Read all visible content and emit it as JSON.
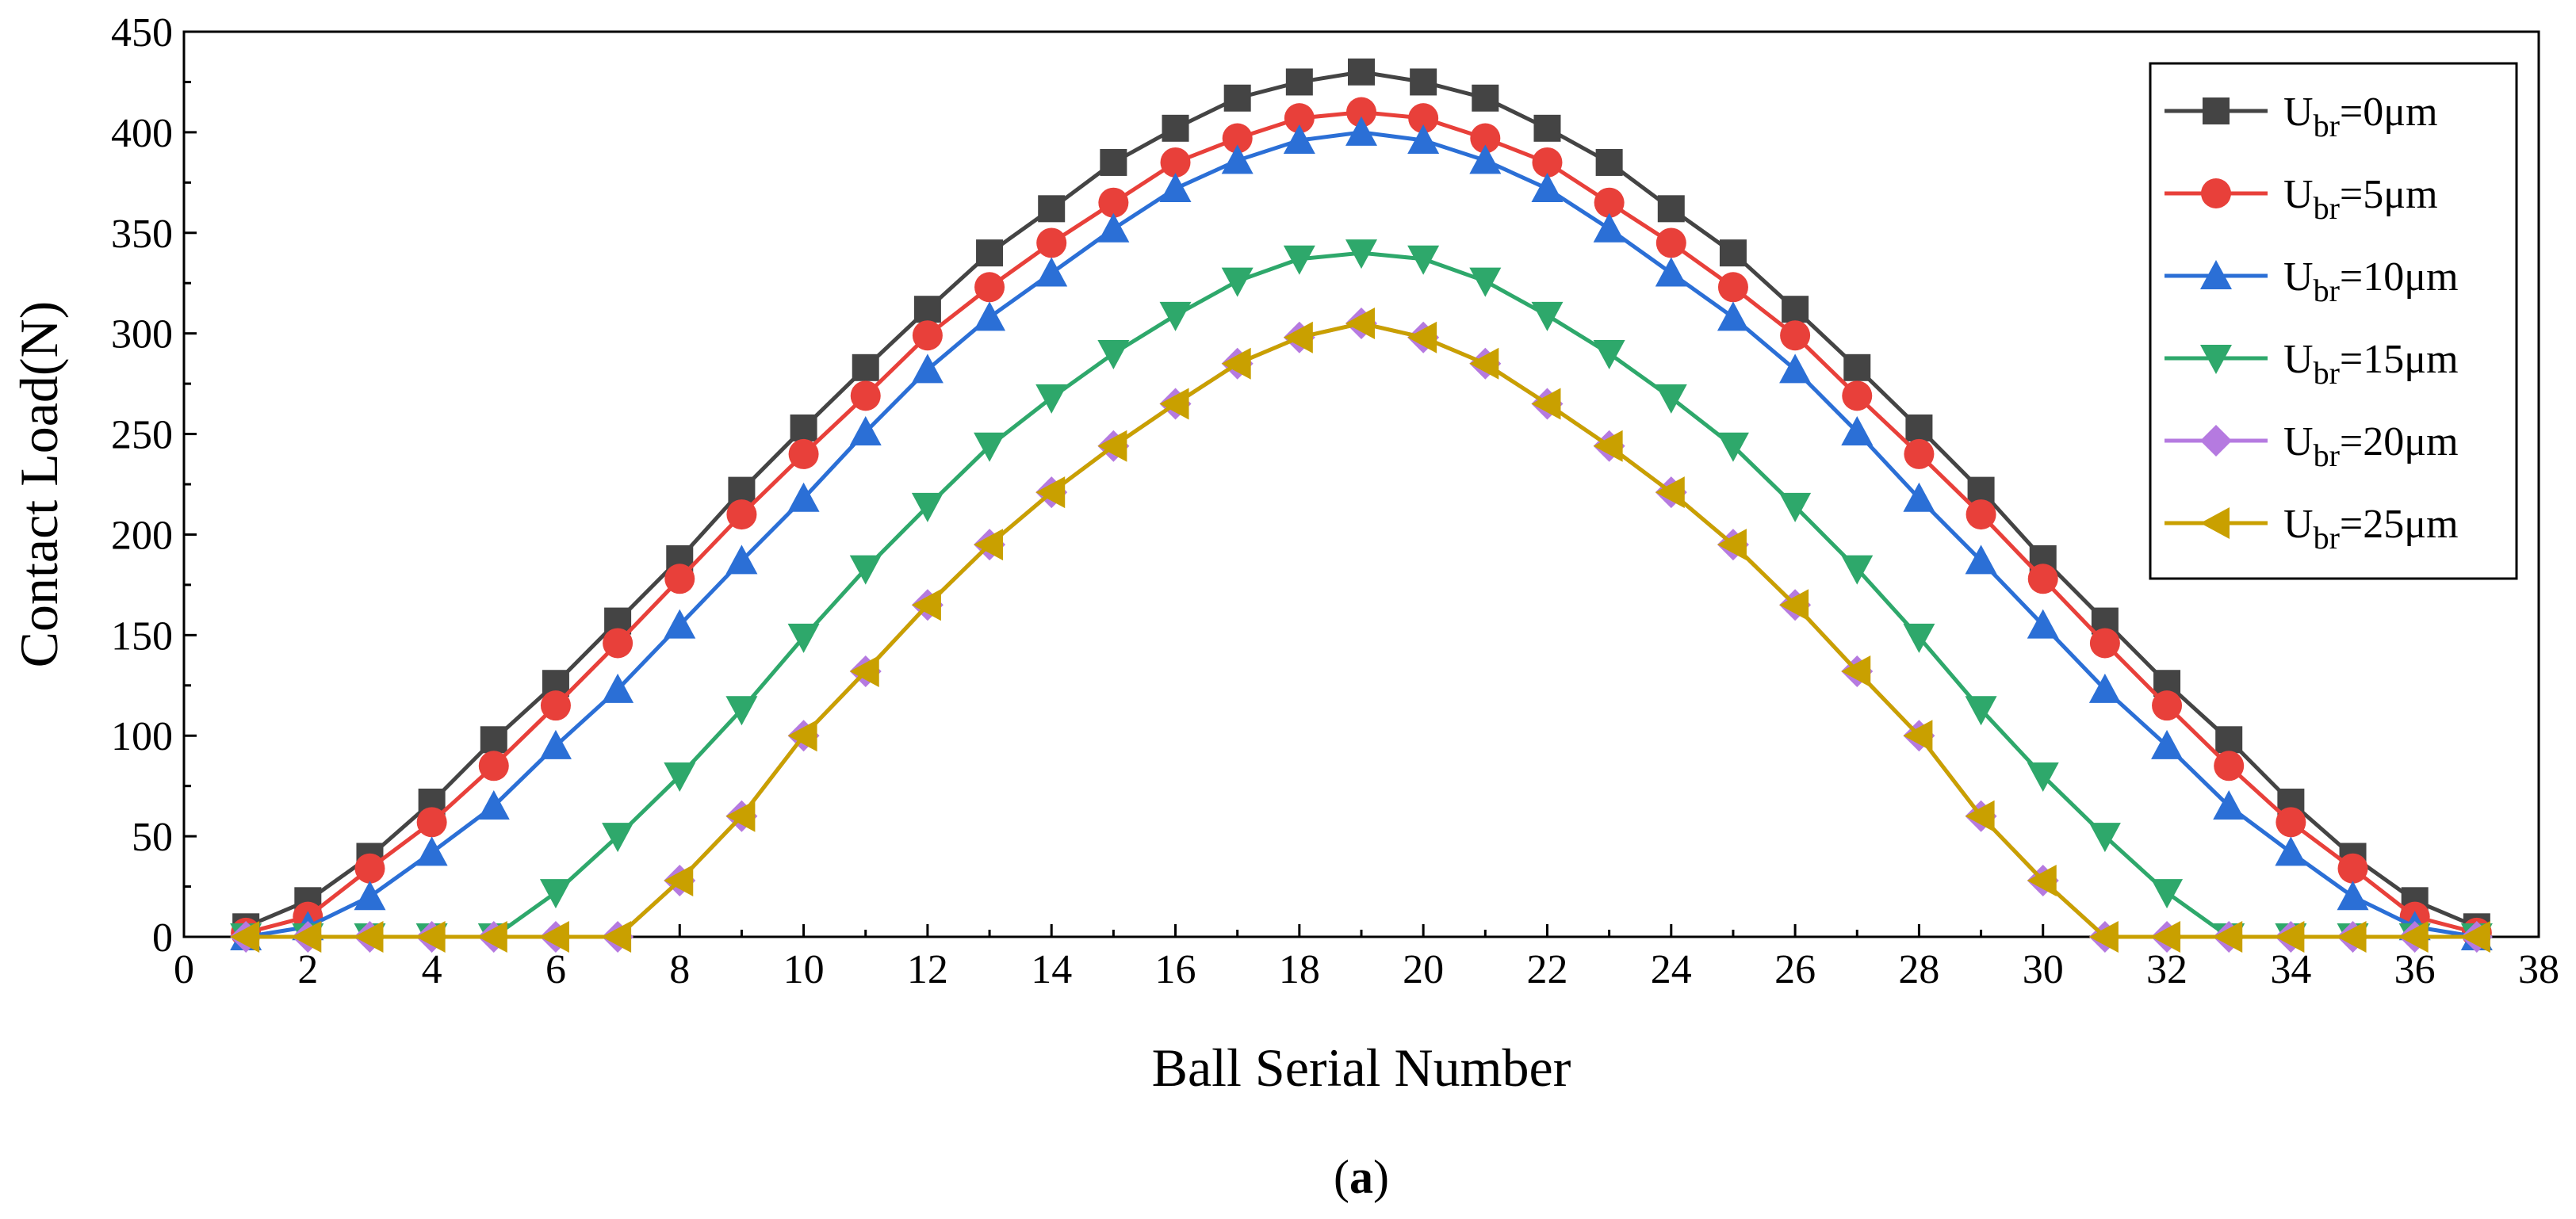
{
  "caption": {
    "open": "(",
    "letter": "a",
    "close": ")"
  },
  "chart_data": {
    "type": "line",
    "xlabel": "Ball Serial Number",
    "ylabel": "Contact Load(N)",
    "xlim": [
      0,
      38
    ],
    "ylim": [
      0,
      450
    ],
    "xticks": [
      0,
      2,
      4,
      6,
      8,
      10,
      12,
      14,
      16,
      18,
      20,
      22,
      24,
      26,
      28,
      30,
      32,
      34,
      36,
      38
    ],
    "yticks": [
      0,
      50,
      100,
      150,
      200,
      250,
      300,
      350,
      400,
      450
    ],
    "grid": false,
    "legend_position": "top-right",
    "x": [
      1,
      2,
      3,
      4,
      5,
      6,
      7,
      8,
      9,
      10,
      11,
      12,
      13,
      14,
      15,
      16,
      17,
      18,
      19,
      20,
      21,
      22,
      23,
      24,
      25,
      26,
      27,
      28,
      29,
      30,
      31,
      32,
      33,
      34,
      35,
      36,
      37
    ],
    "series": [
      {
        "name_main": "U",
        "name_sub": "br",
        "name_rest": "=0μm",
        "color": "#444444",
        "marker": "square",
        "values": [
          5,
          18,
          40,
          67,
          98,
          126,
          157,
          188,
          222,
          253,
          283,
          312,
          340,
          362,
          385,
          402,
          417,
          425,
          430,
          425,
          417,
          402,
          385,
          362,
          340,
          312,
          283,
          253,
          222,
          188,
          157,
          126,
          98,
          67,
          40,
          18,
          5
        ]
      },
      {
        "name_main": "U",
        "name_sub": "br",
        "name_rest": "=5μm",
        "color": "#e8403a",
        "marker": "circle",
        "values": [
          2,
          10,
          34,
          57,
          85,
          115,
          146,
          178,
          210,
          240,
          269,
          299,
          323,
          345,
          365,
          385,
          397,
          407,
          410,
          407,
          397,
          385,
          365,
          345,
          323,
          299,
          269,
          240,
          210,
          178,
          146,
          115,
          85,
          57,
          34,
          10,
          2
        ]
      },
      {
        "name_main": "U",
        "name_sub": "br",
        "name_rest": "=10μm",
        "color": "#2b6fd6",
        "marker": "triangle-up",
        "values": [
          0,
          5,
          20,
          42,
          65,
          95,
          123,
          155,
          187,
          218,
          251,
          282,
          308,
          330,
          352,
          372,
          386,
          396,
          400,
          396,
          386,
          372,
          352,
          330,
          308,
          282,
          251,
          218,
          187,
          155,
          123,
          95,
          65,
          42,
          20,
          5,
          0
        ]
      },
      {
        "name_main": "U",
        "name_sub": "br",
        "name_rest": "=15μm",
        "color": "#2ea86b",
        "marker": "triangle-down",
        "values": [
          0,
          0,
          0,
          0,
          0,
          22,
          50,
          80,
          113,
          149,
          183,
          214,
          244,
          268,
          290,
          309,
          326,
          337,
          340,
          337,
          326,
          309,
          290,
          268,
          244,
          214,
          183,
          149,
          113,
          80,
          50,
          22,
          0,
          0,
          0,
          0,
          0
        ]
      },
      {
        "name_main": "U",
        "name_sub": "br",
        "name_rest": "=20μm",
        "color": "#b57ae0",
        "marker": "diamond",
        "values": [
          0,
          0,
          0,
          0,
          0,
          0,
          0,
          28,
          60,
          100,
          132,
          165,
          195,
          221,
          244,
          265,
          285,
          298,
          305,
          298,
          285,
          265,
          244,
          221,
          195,
          165,
          132,
          100,
          60,
          28,
          0,
          0,
          0,
          0,
          0,
          0,
          0
        ]
      },
      {
        "name_main": "U",
        "name_sub": "br",
        "name_rest": "=25μm",
        "color": "#c9a000",
        "marker": "triangle-left",
        "values": [
          0,
          0,
          0,
          0,
          0,
          0,
          0,
          28,
          60,
          100,
          132,
          165,
          195,
          221,
          244,
          265,
          285,
          298,
          305,
          298,
          285,
          265,
          244,
          221,
          195,
          165,
          132,
          100,
          60,
          28,
          0,
          0,
          0,
          0,
          0,
          0,
          0
        ]
      }
    ]
  }
}
